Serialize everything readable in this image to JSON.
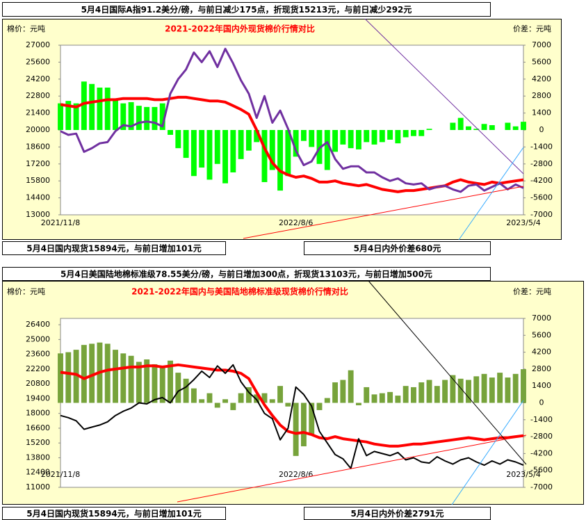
{
  "chart_data": [
    {
      "type": "bar-line",
      "title": "2021-2022年国内外现货棉价行情对比",
      "y_label": "棉价：元吨",
      "y2_label": "价差：元吨",
      "annotations": [
        "5月4日国际A指91.2美分/磅，与前日减少175点，折现货15213元，与前日减少292元",
        "5月4日国内现货15894元，与前日增加101元",
        "5月4日内外价差680元"
      ],
      "categories": [
        "2021/11/8",
        null,
        null,
        null,
        null,
        null,
        null,
        null,
        null,
        null,
        null,
        null,
        null,
        null,
        null,
        null,
        null,
        null,
        null,
        null,
        null,
        null,
        null,
        null,
        null,
        null,
        null,
        null,
        null,
        null,
        "2022/8/6",
        null,
        null,
        null,
        null,
        null,
        null,
        null,
        null,
        null,
        null,
        null,
        null,
        null,
        null,
        null,
        null,
        null,
        null,
        null,
        null,
        null,
        null,
        null,
        null,
        null,
        null,
        null,
        null,
        "2023/5/4"
      ],
      "ylim": [
        13000,
        27000
      ],
      "yticks": [
        13000,
        14400,
        15800,
        17200,
        18600,
        20000,
        21400,
        22800,
        24200,
        25600,
        27000
      ],
      "y2lim": [
        -7000,
        7000
      ],
      "y2ticks": [
        -7000,
        -5600,
        -4200,
        -2800,
        -1400,
        0,
        1400,
        2800,
        4200,
        5600,
        7000
      ],
      "series": [
        {
          "type": "bar",
          "axis": "y2",
          "color": "#00ff00",
          "values": [
            2200,
            2400,
            2200,
            4000,
            3800,
            3500,
            3500,
            2600,
            2200,
            2300,
            2000,
            1900,
            1900,
            2200,
            -400,
            -1500,
            -2300,
            -3800,
            -3100,
            -4100,
            -2800,
            -4400,
            -3500,
            -2400,
            -1700,
            -1000,
            -4300,
            -3300,
            -5000,
            -3800,
            -2200,
            -900,
            -1400,
            -2800,
            -3300,
            -1800,
            -1200,
            -1500,
            -1600,
            -1000,
            -1200,
            -1000,
            -800,
            -1100,
            -600,
            -500,
            -500,
            100,
            0,
            0,
            600,
            1000,
            300,
            100,
            500,
            400,
            0,
            600,
            300,
            680
          ]
        },
        {
          "type": "line",
          "color": "#ff0000",
          "width": 4,
          "values": [
            22100,
            22000,
            21900,
            22200,
            22300,
            22400,
            22500,
            22500,
            22600,
            22600,
            22600,
            22600,
            22500,
            22500,
            22600,
            22700,
            22700,
            22600,
            22500,
            22400,
            22400,
            22300,
            22000,
            21700,
            21300,
            20000,
            18500,
            17300,
            16600,
            16300,
            16100,
            16200,
            16000,
            15700,
            15700,
            15800,
            15600,
            15500,
            15400,
            15500,
            15300,
            15100,
            15000,
            14900,
            15000,
            15000,
            15100,
            15200,
            15300,
            15400,
            15700,
            15900,
            15700,
            15600,
            15500,
            15700,
            15600,
            15700,
            15800,
            15894
          ]
        },
        {
          "type": "line",
          "color": "#7030a0",
          "width": 3,
          "values": [
            19900,
            19600,
            19700,
            18200,
            18500,
            18900,
            19000,
            19900,
            20400,
            20300,
            20600,
            20700,
            20600,
            20300,
            23000,
            24200,
            25000,
            26400,
            25600,
            26500,
            25200,
            26700,
            25500,
            24100,
            23000,
            21000,
            22800,
            20600,
            21600,
            20100,
            18300,
            17100,
            17400,
            18500,
            19000,
            17600,
            16800,
            17000,
            17000,
            16500,
            16500,
            16100,
            15800,
            16000,
            15600,
            15500,
            15600,
            15100,
            15300,
            15400,
            15100,
            14900,
            15400,
            15500,
            15000,
            15300,
            15600,
            15100,
            15500,
            15213
          ]
        }
      ]
    },
    {
      "type": "bar-line",
      "title": "2021-2022年国内与美国陆地棉标准级现货棉价行情对比",
      "y_label": "棉价：元吨",
      "y2_label": "价差：元吨",
      "annotations": [
        "5月4日美国陆地棉标准级78.55美分/磅，与前日增加300点，折现货13103元，与前日增加500元",
        "5月4日国内现货15894元，与前日增加101元",
        "5月4日内外价差2791元"
      ],
      "categories": [
        "2021/11/8",
        null,
        null,
        null,
        null,
        null,
        null,
        null,
        null,
        null,
        null,
        null,
        null,
        null,
        null,
        null,
        null,
        null,
        null,
        null,
        null,
        null,
        null,
        null,
        null,
        null,
        null,
        null,
        null,
        null,
        "2022/8/6",
        null,
        null,
        null,
        null,
        null,
        null,
        null,
        null,
        null,
        null,
        null,
        null,
        null,
        null,
        null,
        null,
        null,
        null,
        null,
        null,
        null,
        null,
        null,
        null,
        null,
        null,
        null,
        null,
        "2023/5/4"
      ],
      "ylim": [
        11000,
        27000
      ],
      "yticks": [
        11000,
        12400,
        13800,
        15200,
        16600,
        18000,
        19400,
        20800,
        22200,
        23600,
        25000,
        26400
      ],
      "y2lim": [
        -7000,
        7000
      ],
      "y2ticks": [
        -7000,
        -5600,
        -4200,
        -2800,
        -1400,
        0,
        1400,
        2800,
        4200,
        5600,
        7000
      ],
      "series": [
        {
          "type": "bar",
          "axis": "y2",
          "color": "#77a33b",
          "values": [
            4100,
            4200,
            4400,
            4800,
            4900,
            5000,
            4900,
            4400,
            4100,
            3900,
            3400,
            3600,
            3200,
            2900,
            3500,
            2500,
            2000,
            1200,
            300,
            800,
            -400,
            300,
            -600,
            800,
            1300,
            700,
            800,
            300,
            1400,
            -300,
            -4400,
            -3600,
            -2700,
            -600,
            400,
            1700,
            1900,
            2700,
            -200,
            1300,
            700,
            800,
            900,
            600,
            1400,
            1300,
            1700,
            1900,
            1400,
            1900,
            2300,
            2000,
            1900,
            2200,
            2400,
            2100,
            2500,
            2100,
            2400,
            2791
          ]
        },
        {
          "type": "line",
          "color": "#ff0000",
          "width": 4,
          "values": [
            21900,
            21800,
            21700,
            21300,
            21600,
            21900,
            22100,
            22200,
            22300,
            22400,
            22400,
            22500,
            22500,
            22400,
            22500,
            22600,
            22500,
            22400,
            22300,
            22200,
            22100,
            22100,
            22000,
            21800,
            21300,
            20000,
            18800,
            17800,
            16900,
            16300,
            16100,
            16200,
            16000,
            15700,
            15600,
            15800,
            15600,
            15500,
            15400,
            15300,
            15100,
            15000,
            14900,
            14900,
            15000,
            15100,
            15100,
            15200,
            15300,
            15400,
            15500,
            15600,
            15700,
            15600,
            15500,
            15600,
            15700,
            15700,
            15800,
            15894
          ]
        },
        {
          "type": "line",
          "color": "#000000",
          "width": 2,
          "values": [
            17800,
            17600,
            17300,
            16500,
            16700,
            16900,
            17200,
            17800,
            18200,
            18500,
            19000,
            18900,
            19300,
            19500,
            19000,
            20100,
            20500,
            21200,
            22000,
            21400,
            22500,
            21800,
            22600,
            21000,
            20000,
            19300,
            18000,
            17500,
            15500,
            16600,
            20500,
            19800,
            18700,
            16300,
            15200,
            14100,
            13700,
            12800,
            15600,
            14000,
            14400,
            14200,
            14000,
            14300,
            13600,
            13800,
            13400,
            13300,
            13900,
            13500,
            13200,
            13600,
            13800,
            13400,
            13100,
            13500,
            13200,
            13600,
            13400,
            13103
          ]
        }
      ]
    }
  ]
}
